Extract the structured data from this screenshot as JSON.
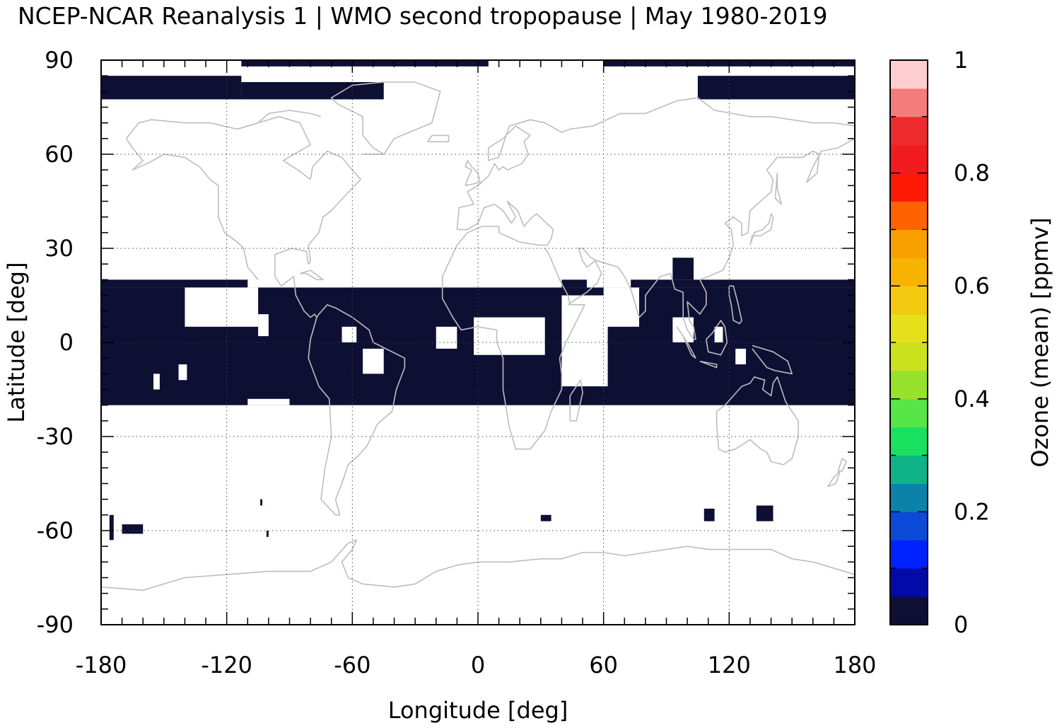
{
  "chart_data": {
    "type": "heatmap",
    "title": "NCEP-NCAR Reanalysis 1 | WMO second tropopause | May 1980-2019",
    "xlabel": "Longitude [deg]",
    "ylabel": "Latitude [deg]",
    "xlim": [
      -180,
      180
    ],
    "ylim": [
      -90,
      90
    ],
    "xticks": [
      -180,
      -120,
      -60,
      0,
      60,
      120,
      180
    ],
    "yticks": [
      -90,
      -60,
      -30,
      0,
      30,
      60,
      90
    ],
    "xtick_labels": [
      "-180",
      "-120",
      "-60",
      "0",
      "60",
      "120",
      "180"
    ],
    "ytick_labels": [
      "-90",
      "-60",
      "-30",
      "0",
      "30",
      "60",
      "90"
    ],
    "grid": true,
    "basemap": "coastlines",
    "cell_color": "#0d0f33",
    "grid_resolution_deg": 10,
    "cells_note_value": 0,
    "filled_regions": [
      {
        "lon": [
          -180,
          180
        ],
        "lat": [
          -20,
          17.5
        ]
      },
      {
        "lon": [
          -180,
          -110
        ],
        "lat": [
          17.5,
          20
        ]
      },
      {
        "lon": [
          -180,
          -113
        ],
        "lat": [
          77.5,
          85
        ]
      },
      {
        "lon": [
          -113,
          -45
        ],
        "lat": [
          77.5,
          83
        ]
      },
      {
        "lon": [
          -113,
          5
        ],
        "lat": [
          88,
          90
        ]
      },
      {
        "lon": [
          60,
          180
        ],
        "lat": [
          88,
          90
        ]
      },
      {
        "lon": [
          105,
          180
        ],
        "lat": [
          77.5,
          85
        ]
      },
      {
        "lon": [
          40,
          52
        ],
        "lat": [
          17.5,
          20
        ]
      },
      {
        "lon": [
          73,
          180
        ],
        "lat": [
          17.5,
          20
        ]
      },
      {
        "lon": [
          93,
          103
        ],
        "lat": [
          20,
          27
        ]
      },
      {
        "lon": [
          -176,
          -174
        ],
        "lat": [
          -63,
          -55
        ]
      },
      {
        "lon": [
          -170,
          -160
        ],
        "lat": [
          -61,
          -58
        ]
      },
      {
        "lon": [
          -104,
          -103
        ],
        "lat": [
          -52,
          -50
        ]
      },
      {
        "lon": [
          -101,
          -100
        ],
        "lat": [
          -62,
          -60
        ]
      },
      {
        "lon": [
          30,
          35
        ],
        "lat": [
          -57,
          -55
        ]
      },
      {
        "lon": [
          108,
          113
        ],
        "lat": [
          -57,
          -53
        ]
      },
      {
        "lon": [
          133,
          141
        ],
        "lat": [
          -57,
          -52
        ]
      }
    ],
    "empty_regions": [
      {
        "lon": [
          -140,
          -105
        ],
        "lat": [
          5,
          17.5
        ]
      },
      {
        "lon": [
          -105,
          -100
        ],
        "lat": [
          2,
          9
        ]
      },
      {
        "lon": [
          -65,
          -58
        ],
        "lat": [
          0,
          5
        ]
      },
      {
        "lon": [
          -55,
          -45
        ],
        "lat": [
          -10,
          -2
        ]
      },
      {
        "lon": [
          -20,
          -10
        ],
        "lat": [
          -2,
          5
        ]
      },
      {
        "lon": [
          -2,
          32
        ],
        "lat": [
          -4,
          8
        ]
      },
      {
        "lon": [
          40,
          62
        ],
        "lat": [
          -14,
          15
        ]
      },
      {
        "lon": [
          60,
          77
        ],
        "lat": [
          5,
          17.5
        ]
      },
      {
        "lon": [
          93,
          103
        ],
        "lat": [
          0,
          8
        ]
      },
      {
        "lon": [
          113,
          117
        ],
        "lat": [
          0,
          5
        ]
      },
      {
        "lon": [
          123,
          128
        ],
        "lat": [
          -7,
          -2
        ]
      },
      {
        "lon": [
          -155,
          -152
        ],
        "lat": [
          -15,
          -10
        ]
      },
      {
        "lon": [
          -143,
          -139
        ],
        "lat": [
          -12,
          -7
        ]
      },
      {
        "lon": [
          -110,
          -90
        ],
        "lat": [
          -20,
          -18
        ]
      }
    ],
    "colorbar": {
      "label": "Ozone (mean) [ppmv]",
      "min": 0,
      "max": 1,
      "tick_labels": [
        "0",
        "0.2",
        "0.4",
        "0.6",
        "0.8",
        "1"
      ],
      "ticks": [
        0,
        0.2,
        0.4,
        0.6,
        0.8,
        1
      ],
      "colors": [
        "#0d0f33",
        "#040aa8",
        "#0022ff",
        "#0c4ad8",
        "#0b82aa",
        "#10b388",
        "#19e05f",
        "#56e646",
        "#98e12c",
        "#cae11e",
        "#e6e01a",
        "#f2c90e",
        "#f6b400",
        "#fa9f00",
        "#ff6300",
        "#ff1a08",
        "#f01c20",
        "#ee2c2e",
        "#f57c7c",
        "#ffcfcf"
      ]
    }
  }
}
